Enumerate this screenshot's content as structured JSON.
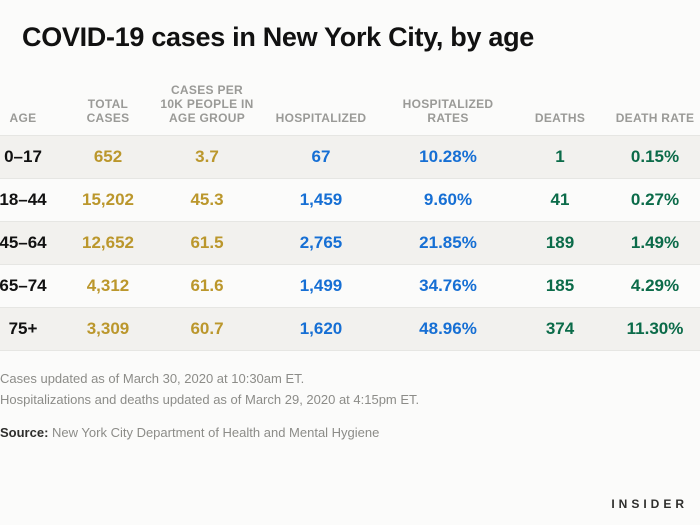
{
  "title": "COVID-19 cases in New York City, by age",
  "table": {
    "type": "table",
    "columns": [
      {
        "key": "age",
        "label": "AGE",
        "color": "#111111"
      },
      {
        "key": "total",
        "label": "TOTAL CASES",
        "color": "#bb972c"
      },
      {
        "key": "per10k",
        "label": "CASES PER 10K PEOPLE IN AGE GROUP",
        "color": "#bb972c"
      },
      {
        "key": "hosp",
        "label": "HOSPITALIZED",
        "color": "#166fd4"
      },
      {
        "key": "hosp_rate",
        "label": "HOSPITALIZED RATES",
        "color": "#166fd4"
      },
      {
        "key": "deaths",
        "label": "DEATHS",
        "color": "#0b6b49"
      },
      {
        "key": "death_rate",
        "label": "DEATH RATE",
        "color": "#0b6b49"
      }
    ],
    "rows": [
      {
        "age": "0–17",
        "total": "652",
        "per10k": "3.7",
        "hosp": "67",
        "hosp_rate": "10.28%",
        "deaths": "1",
        "death_rate": "0.15%"
      },
      {
        "age": "18–44",
        "total": "15,202",
        "per10k": "45.3",
        "hosp": "1,459",
        "hosp_rate": "9.60%",
        "deaths": "41",
        "death_rate": "0.27%"
      },
      {
        "age": "45–64",
        "total": "12,652",
        "per10k": "61.5",
        "hosp": "2,765",
        "hosp_rate": "21.85%",
        "deaths": "189",
        "death_rate": "1.49%"
      },
      {
        "age": "65–74",
        "total": "4,312",
        "per10k": "61.6",
        "hosp": "1,499",
        "hosp_rate": "34.76%",
        "deaths": "185",
        "death_rate": "4.29%"
      },
      {
        "age": "75+",
        "total": "3,309",
        "per10k": "60.7",
        "hosp": "1,620",
        "hosp_rate": "48.96%",
        "deaths": "374",
        "death_rate": "11.30%"
      }
    ],
    "header_fontsize": 12,
    "header_color": "#9a9a97",
    "cell_fontsize": 17,
    "row_stripe_color": "#f2f1ee",
    "border_color": "#e6e6e3",
    "background_color": "#fbfbfa"
  },
  "notes_line1": "Cases updated as of March 30, 2020 at 10:30am ET.",
  "notes_line2": "Hospitalizations and deaths updated as of March 29, 2020 at 4:15pm ET.",
  "source_label": "Source:",
  "source_text": "New York City Department of Health and Mental Hygiene",
  "brand": "INSIDER"
}
